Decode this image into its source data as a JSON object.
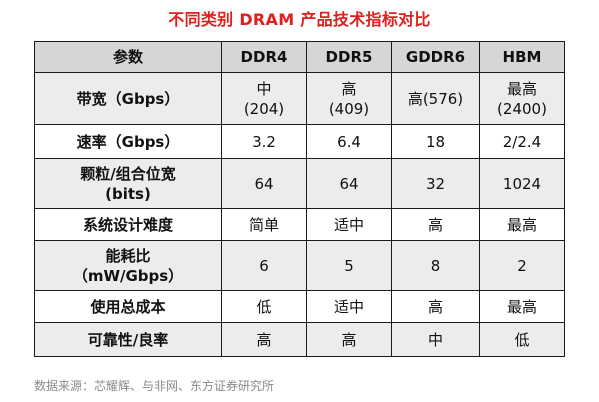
{
  "title": "不同类别 DRAM 产品技术指标对比",
  "table": {
    "headers": [
      "参数",
      "DDR4",
      "DDR5",
      "GDDR6",
      "HBM"
    ],
    "rows": [
      {
        "label": [
          "带宽（Gbps）"
        ],
        "cells": [
          [
            "中",
            "(204)"
          ],
          [
            "高",
            "(409)"
          ],
          [
            "高(576)"
          ],
          [
            "最高",
            "(2400)"
          ]
        ]
      },
      {
        "label": [
          "速率（Gbps）"
        ],
        "cells": [
          [
            "3.2"
          ],
          [
            "6.4"
          ],
          [
            "18"
          ],
          [
            "2/2.4"
          ]
        ]
      },
      {
        "label": [
          "颗粒/组合位宽",
          "(bits)"
        ],
        "cells": [
          [
            "64"
          ],
          [
            "64"
          ],
          [
            "32"
          ],
          [
            "1024"
          ]
        ]
      },
      {
        "label": [
          "系统设计难度"
        ],
        "cells": [
          [
            "简单"
          ],
          [
            "适中"
          ],
          [
            "高"
          ],
          [
            "最高"
          ]
        ]
      },
      {
        "label": [
          "能耗比",
          "（mW/Gbps）"
        ],
        "cells": [
          [
            "6"
          ],
          [
            "5"
          ],
          [
            "8"
          ],
          [
            "2"
          ]
        ]
      },
      {
        "label": [
          "使用总成本"
        ],
        "cells": [
          [
            "低"
          ],
          [
            "适中"
          ],
          [
            "高"
          ],
          [
            "最高"
          ]
        ]
      },
      {
        "label": [
          "可靠性/良率"
        ],
        "cells": [
          [
            "高"
          ],
          [
            "高"
          ],
          [
            "中"
          ],
          [
            "低"
          ]
        ]
      }
    ]
  },
  "source": "数据来源：芯耀辉、与非网、东方证券研究所",
  "colors": {
    "title": "#e0201e",
    "header_bg": "#d6d6d6",
    "row_alt_bg": "#ececec",
    "row_plain_bg": "#ffffff",
    "border": "#1a1a1a",
    "source_text": "#8a8a8a"
  }
}
